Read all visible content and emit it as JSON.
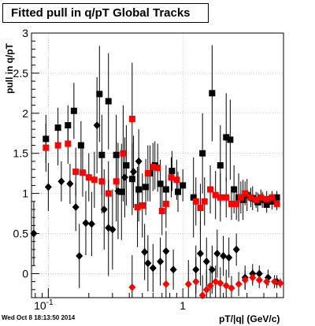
{
  "footer": {
    "timestamp": "Wed Oct  8 18:13:50 2014"
  },
  "chart_data": {
    "type": "scatter",
    "title": "Fitted pull in q/pT  Global Tracks",
    "xlabel": "pT/|q| (GeV/c)",
    "ylabel": "pull in q/pT",
    "xscale": "log",
    "xlim": [
      0.075,
      5.6
    ],
    "ylim": [
      -0.3,
      3.0
    ],
    "grid": true,
    "x_tick_labels": [
      {
        "value": 0.1,
        "label": "10^-1"
      },
      {
        "value": 1,
        "label": "1"
      }
    ],
    "y_tick_labels": [
      "0",
      "0.5",
      "1",
      "1.5",
      "2",
      "2.5",
      "3"
    ],
    "series": [
      {
        "marker": "square",
        "color": "#000000",
        "points": [
          {
            "x": 0.096,
            "y": 1.68,
            "err": 0.3
          },
          {
            "x": 0.118,
            "y": 1.82,
            "err": 0.25
          },
          {
            "x": 0.14,
            "y": 1.85,
            "err": 0.25
          },
          {
            "x": 0.155,
            "y": 2.03,
            "err": 0.35
          },
          {
            "x": 0.175,
            "y": 1.6,
            "err": 0.3
          },
          {
            "x": 0.24,
            "y": 2.24,
            "err": 0.6
          },
          {
            "x": 0.25,
            "y": 1.48,
            "err": 0.5
          },
          {
            "x": 0.28,
            "y": 2.15,
            "err": 0.6
          },
          {
            "x": 0.32,
            "y": 1.48,
            "err": 0.5
          },
          {
            "x": 0.35,
            "y": 1.02,
            "err": 0.6
          },
          {
            "x": 0.38,
            "y": 1.35,
            "err": 0.5
          },
          {
            "x": 0.42,
            "y": 1.18,
            "err": 0.45
          },
          {
            "x": 0.47,
            "y": 1.05,
            "err": 0.4
          },
          {
            "x": 0.53,
            "y": 1.08,
            "err": 0.35
          },
          {
            "x": 0.57,
            "y": 1.25,
            "err": 0.35
          },
          {
            "x": 0.62,
            "y": 1.35,
            "err": 0.3
          },
          {
            "x": 0.68,
            "y": 1.12,
            "err": 0.3
          },
          {
            "x": 0.75,
            "y": 1.05,
            "err": 0.3
          },
          {
            "x": 0.83,
            "y": 1.28,
            "err": 0.25
          },
          {
            "x": 0.92,
            "y": 1.02,
            "err": 0.25
          },
          {
            "x": 1.0,
            "y": 1.1,
            "err": 0.2
          },
          {
            "x": 1.2,
            "y": 0.95,
            "err": 0.5
          },
          {
            "x": 1.4,
            "y": 1.5,
            "err": 0.5
          },
          {
            "x": 1.65,
            "y": 2.25,
            "err": 0.6
          },
          {
            "x": 1.9,
            "y": 1.35,
            "err": 0.5
          },
          {
            "x": 2.1,
            "y": 1.7,
            "err": 0.55
          },
          {
            "x": 2.25,
            "y": 1.67,
            "err": 0.5
          },
          {
            "x": 2.4,
            "y": 1.05,
            "err": 0.3
          },
          {
            "x": 2.6,
            "y": 0.95,
            "err": 0.3
          },
          {
            "x": 2.8,
            "y": 0.92,
            "err": 0.25
          },
          {
            "x": 3.0,
            "y": 0.98,
            "err": 0.2
          },
          {
            "x": 3.3,
            "y": 0.94,
            "err": 0.15
          },
          {
            "x": 3.6,
            "y": 0.89,
            "err": 0.12
          },
          {
            "x": 3.9,
            "y": 0.92,
            "err": 0.1
          },
          {
            "x": 4.2,
            "y": 0.86,
            "err": 0.1
          },
          {
            "x": 4.6,
            "y": 0.9,
            "err": 0.1
          },
          {
            "x": 5.0,
            "y": 0.95,
            "err": 0.08
          }
        ]
      },
      {
        "marker": "square",
        "color": "#ff0000",
        "points": [
          {
            "x": 0.096,
            "y": 1.57,
            "err": 0.3
          },
          {
            "x": 0.118,
            "y": 1.6,
            "err": 0.25
          },
          {
            "x": 0.14,
            "y": 1.62,
            "err": 0.25
          },
          {
            "x": 0.16,
            "y": 1.27,
            "err": 0.3
          },
          {
            "x": 0.18,
            "y": 1.26,
            "err": 0.3
          },
          {
            "x": 0.2,
            "y": 1.2,
            "err": 0.3
          },
          {
            "x": 0.22,
            "y": 1.17,
            "err": 0.35
          },
          {
            "x": 0.25,
            "y": 1.15,
            "err": 0.4
          },
          {
            "x": 0.28,
            "y": 1.0,
            "err": 0.4
          },
          {
            "x": 0.32,
            "y": 1.15,
            "err": 0.5
          },
          {
            "x": 0.36,
            "y": 1.5,
            "err": 0.6
          },
          {
            "x": 0.42,
            "y": 1.93,
            "err": 0.7
          },
          {
            "x": 0.46,
            "y": 0.83,
            "err": 0.5
          },
          {
            "x": 0.5,
            "y": 0.85,
            "err": 0.4
          },
          {
            "x": 0.55,
            "y": 1.25,
            "err": 0.35
          },
          {
            "x": 0.6,
            "y": 1.33,
            "err": 0.3
          },
          {
            "x": 0.65,
            "y": 1.32,
            "err": 0.3
          },
          {
            "x": 0.7,
            "y": 0.78,
            "err": 0.3
          },
          {
            "x": 0.75,
            "y": 0.87,
            "err": 0.3
          },
          {
            "x": 0.82,
            "y": 1.2,
            "err": 0.25
          },
          {
            "x": 0.9,
            "y": 1.17,
            "err": 0.25
          },
          {
            "x": 1.25,
            "y": 0.9,
            "err": 0.3
          },
          {
            "x": 1.35,
            "y": 0.82,
            "err": 0.3
          },
          {
            "x": 1.45,
            "y": 0.9,
            "err": 0.3
          },
          {
            "x": 1.6,
            "y": 1.05,
            "err": 0.3
          },
          {
            "x": 1.75,
            "y": 0.98,
            "err": 0.3
          },
          {
            "x": 1.9,
            "y": 0.95,
            "err": 0.3
          },
          {
            "x": 2.1,
            "y": 0.95,
            "err": 0.25
          },
          {
            "x": 2.3,
            "y": 0.87,
            "err": 0.2
          },
          {
            "x": 2.5,
            "y": 0.87,
            "err": 0.2
          },
          {
            "x": 2.7,
            "y": 0.95,
            "err": 0.2
          },
          {
            "x": 2.9,
            "y": 1.0,
            "err": 0.15
          },
          {
            "x": 3.2,
            "y": 0.95,
            "err": 0.12
          },
          {
            "x": 3.5,
            "y": 0.92,
            "err": 0.1
          },
          {
            "x": 3.8,
            "y": 0.95,
            "err": 0.1
          },
          {
            "x": 4.2,
            "y": 0.93,
            "err": 0.1
          },
          {
            "x": 4.6,
            "y": 0.95,
            "err": 0.08
          },
          {
            "x": 5.0,
            "y": 0.87,
            "err": 0.08
          }
        ]
      },
      {
        "marker": "diamond",
        "color": "#000000",
        "points": [
          {
            "x": 0.078,
            "y": 0.5,
            "err": 0.4
          },
          {
            "x": 0.1,
            "y": 1.08,
            "err": 0.3
          },
          {
            "x": 0.125,
            "y": 1.15,
            "err": 0.25
          },
          {
            "x": 0.145,
            "y": 1.12,
            "err": 0.25
          },
          {
            "x": 0.16,
            "y": 0.83,
            "err": 0.3
          },
          {
            "x": 0.17,
            "y": 0.22,
            "err": 0.4
          },
          {
            "x": 0.19,
            "y": 0.63,
            "err": 0.4
          },
          {
            "x": 0.21,
            "y": 0.62,
            "err": 0.4
          },
          {
            "x": 0.23,
            "y": 1.85,
            "err": 0.6
          },
          {
            "x": 0.26,
            "y": 0.8,
            "err": 0.5
          },
          {
            "x": 0.28,
            "y": 0.57,
            "err": 0.6
          },
          {
            "x": 0.3,
            "y": 0.55,
            "err": 0.5
          },
          {
            "x": 0.33,
            "y": 1.03,
            "err": 0.6
          },
          {
            "x": 0.37,
            "y": 1.2,
            "err": 0.5
          },
          {
            "x": 0.43,
            "y": 1.27,
            "err": 0.45
          },
          {
            "x": 0.47,
            "y": 1.4,
            "err": 0.4
          },
          {
            "x": 0.52,
            "y": 0.27,
            "err": 0.35
          },
          {
            "x": 0.55,
            "y": 0.13,
            "err": 0.35
          },
          {
            "x": 0.6,
            "y": 0.07,
            "err": 0.3
          },
          {
            "x": 0.68,
            "y": 0.15,
            "err": 0.3
          },
          {
            "x": 0.75,
            "y": 0.28,
            "err": 0.25
          },
          {
            "x": 0.85,
            "y": 0.05,
            "err": 0.25
          },
          {
            "x": 1.25,
            "y": 0.05,
            "err": 0.3
          },
          {
            "x": 1.35,
            "y": 0.25,
            "err": 0.4
          },
          {
            "x": 1.5,
            "y": 0.15,
            "err": 0.3
          },
          {
            "x": 1.65,
            "y": 0.05,
            "err": 0.3
          },
          {
            "x": 1.8,
            "y": 0.25,
            "err": 0.3
          },
          {
            "x": 2.0,
            "y": 0.22,
            "err": 0.25
          },
          {
            "x": 2.2,
            "y": 0.2,
            "err": 0.25
          },
          {
            "x": 2.5,
            "y": 0.3,
            "err": 0.2
          },
          {
            "x": 2.9,
            "y": -0.05,
            "err": 0.15
          },
          {
            "x": 3.3,
            "y": 0.0,
            "err": 0.12
          },
          {
            "x": 3.7,
            "y": 0.0,
            "err": 0.1
          },
          {
            "x": 4.3,
            "y": -0.05,
            "err": 0.1
          },
          {
            "x": 5.0,
            "y": -0.1,
            "err": 0.08
          }
        ]
      },
      {
        "marker": "diamond",
        "color": "#ff0000",
        "points": [
          {
            "x": 0.42,
            "y": -0.17,
            "err": 0.4
          },
          {
            "x": 0.75,
            "y": -0.13,
            "err": 0.4
          },
          {
            "x": 1.1,
            "y": -0.13,
            "err": 0.3
          },
          {
            "x": 1.25,
            "y": -0.1,
            "err": 0.3
          },
          {
            "x": 1.4,
            "y": -0.27,
            "err": 0.25
          },
          {
            "x": 1.5,
            "y": -0.2,
            "err": 0.25
          },
          {
            "x": 1.6,
            "y": -0.15,
            "err": 0.25
          },
          {
            "x": 1.75,
            "y": -0.1,
            "err": 0.2
          },
          {
            "x": 1.9,
            "y": -0.12,
            "err": 0.2
          },
          {
            "x": 2.1,
            "y": -0.15,
            "err": 0.2
          },
          {
            "x": 2.3,
            "y": -0.18,
            "err": 0.15
          },
          {
            "x": 2.6,
            "y": -0.13,
            "err": 0.15
          },
          {
            "x": 2.9,
            "y": -0.08,
            "err": 0.12
          },
          {
            "x": 3.3,
            "y": -0.05,
            "err": 0.1
          },
          {
            "x": 3.7,
            "y": -0.08,
            "err": 0.1
          },
          {
            "x": 4.2,
            "y": -0.1,
            "err": 0.08
          },
          {
            "x": 4.8,
            "y": -0.1,
            "err": 0.08
          },
          {
            "x": 5.3,
            "y": -0.12,
            "err": 0.06
          }
        ]
      }
    ]
  }
}
